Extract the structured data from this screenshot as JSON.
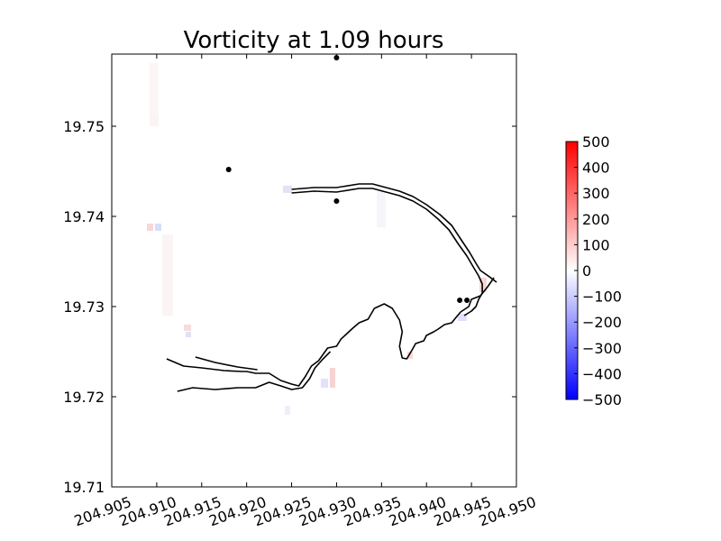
{
  "chart_data": {
    "type": "heatmap",
    "title": "Vorticity at 1.09 hours",
    "xlabel": "",
    "ylabel": "",
    "xlim": [
      204.905,
      204.95
    ],
    "ylim": [
      19.71,
      19.758
    ],
    "x_ticks": [
      "204.905",
      "204.910",
      "204.915",
      "204.920",
      "204.925",
      "204.930",
      "204.935",
      "204.940",
      "204.945",
      "204.950"
    ],
    "y_ticks": [
      "19.71",
      "19.72",
      "19.73",
      "19.74",
      "19.75"
    ],
    "grid": false,
    "colorbar": {
      "range": [
        -500,
        500
      ],
      "ticks": [
        "500",
        "400",
        "300",
        "200",
        "100",
        "0",
        "−100",
        "−200",
        "−300",
        "−400",
        "−500"
      ],
      "colors": {
        "low": "#0000ff",
        "mid": "#ffffff",
        "high": "#ff0000"
      }
    },
    "gauge_points": [
      {
        "x": 204.93,
        "y": 19.7576
      },
      {
        "x": 204.918,
        "y": 19.7452
      },
      {
        "x": 204.93,
        "y": 19.7417
      },
      {
        "x": 204.9437,
        "y": 19.7307
      },
      {
        "x": 204.9445,
        "y": 19.7307
      }
    ],
    "shoreline": [
      [
        [
          204.9111,
          19.7242
        ],
        [
          204.913,
          19.7234
        ],
        [
          204.915,
          19.7232
        ],
        [
          204.9175,
          19.7229
        ],
        [
          204.9195,
          19.7228
        ],
        [
          204.92,
          19.7228
        ],
        [
          204.921,
          19.7226
        ],
        [
          204.9225,
          19.7226
        ],
        [
          204.9238,
          19.7218
        ],
        [
          204.925,
          19.7214
        ],
        [
          204.9258,
          19.7212
        ],
        [
          204.9265,
          19.7222
        ],
        [
          204.9272,
          19.7234
        ],
        [
          204.928,
          19.724
        ],
        [
          204.929,
          19.7254
        ],
        [
          204.93,
          19.7256
        ],
        [
          204.9305,
          19.7264
        ],
        [
          204.9318,
          19.7276
        ],
        [
          204.9325,
          19.7282
        ],
        [
          204.9335,
          19.7286
        ],
        [
          204.9342,
          19.7298
        ],
        [
          204.9353,
          19.7303
        ],
        [
          204.9362,
          19.7298
        ],
        [
          204.937,
          19.7285
        ],
        [
          204.9373,
          19.7272
        ],
        [
          204.937,
          19.7256
        ],
        [
          204.9373,
          19.7243
        ],
        [
          204.9378,
          19.7242
        ],
        [
          204.9384,
          19.7252
        ],
        [
          204.9388,
          19.7259
        ],
        [
          204.9397,
          19.7262
        ],
        [
          204.94,
          19.7268
        ],
        [
          204.9408,
          19.7272
        ],
        [
          204.9413,
          19.7275
        ],
        [
          204.942,
          19.728
        ],
        [
          204.9428,
          19.7282
        ],
        [
          204.9432,
          19.7287
        ],
        [
          204.9438,
          19.7294
        ],
        [
          204.9447,
          19.73
        ],
        [
          204.945,
          19.7308
        ],
        [
          204.946,
          19.7312
        ],
        [
          204.9468,
          19.7322
        ],
        [
          204.9475,
          19.7332
        ]
      ],
      [
        [
          204.9123,
          19.7206
        ],
        [
          204.914,
          19.721
        ],
        [
          204.9165,
          19.7208
        ],
        [
          204.919,
          19.721
        ],
        [
          204.921,
          19.721
        ],
        [
          204.9225,
          19.7216
        ],
        [
          204.9238,
          19.7212
        ],
        [
          204.925,
          19.7208
        ],
        [
          204.9262,
          19.721
        ],
        [
          204.927,
          19.722
        ],
        [
          204.9276,
          19.7232
        ],
        [
          204.9285,
          19.7242
        ],
        [
          204.9293,
          19.725
        ]
      ],
      [
        [
          204.9143,
          19.7244
        ],
        [
          204.9165,
          19.7238
        ],
        [
          204.919,
          19.7233
        ],
        [
          204.9212,
          19.723
        ]
      ],
      [
        [
          204.925,
          19.743
        ],
        [
          204.9275,
          19.7432
        ],
        [
          204.93,
          19.7432
        ],
        [
          204.9325,
          19.7436
        ],
        [
          204.934,
          19.7436
        ],
        [
          204.9355,
          19.7432
        ],
        [
          204.937,
          19.7428
        ],
        [
          204.9385,
          19.7422
        ],
        [
          204.94,
          19.7413
        ],
        [
          204.9415,
          19.7402
        ],
        [
          204.9428,
          19.739
        ],
        [
          204.9438,
          19.7375
        ],
        [
          204.9448,
          19.736
        ],
        [
          204.9455,
          19.7348
        ],
        [
          204.946,
          19.734
        ],
        [
          204.947,
          19.7333
        ],
        [
          204.9478,
          19.7327
        ]
      ],
      [
        [
          204.925,
          19.7426
        ],
        [
          204.9275,
          19.7428
        ],
        [
          204.93,
          19.7427
        ],
        [
          204.9325,
          19.7431
        ],
        [
          204.934,
          19.7431
        ],
        [
          204.9355,
          19.7427
        ],
        [
          204.937,
          19.7423
        ],
        [
          204.9385,
          19.7417
        ],
        [
          204.94,
          19.7408
        ],
        [
          204.9413,
          19.7397
        ],
        [
          204.9425,
          19.7385
        ],
        [
          204.9435,
          19.737
        ],
        [
          204.9445,
          19.7356
        ],
        [
          204.9452,
          19.7344
        ],
        [
          204.9458,
          19.7334
        ],
        [
          204.9462,
          19.7325
        ],
        [
          204.9462,
          19.7315
        ],
        [
          204.9458,
          19.7308
        ],
        [
          204.9455,
          19.73
        ],
        [
          204.945,
          19.7295
        ],
        [
          204.9442,
          19.729
        ]
      ]
    ]
  }
}
